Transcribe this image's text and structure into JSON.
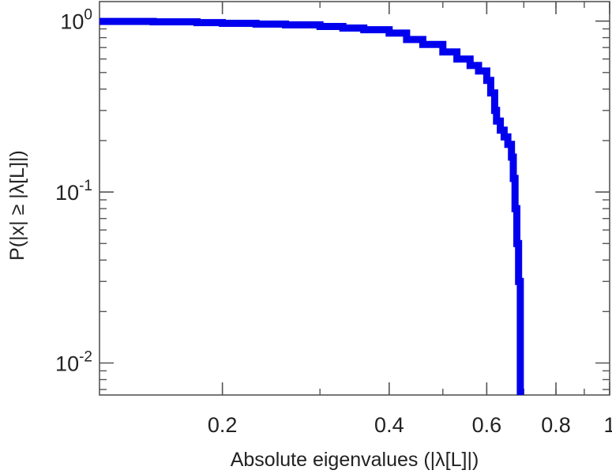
{
  "chart_data": {
    "type": "line",
    "xscale": "log",
    "yscale": "log",
    "xlim": [
      0.12,
      1.0
    ],
    "ylim": [
      0.0065,
      1.3
    ],
    "xlabel": "Absolute eigenvalues (|λ[L]|)",
    "ylabel": "P(|x| ≥ |λ[L]|)",
    "x_ticks": [
      {
        "value": 0.2,
        "label": "0.2"
      },
      {
        "value": 0.4,
        "label": "0.4"
      },
      {
        "value": 0.6,
        "label": "0.6"
      },
      {
        "value": 0.8,
        "label": "0.8"
      },
      {
        "value": 1.0,
        "label": "1"
      }
    ],
    "y_ticks": [
      {
        "value": 1.0,
        "base": "10",
        "exp": "0"
      },
      {
        "value": 0.1,
        "base": "10",
        "exp": "-1"
      },
      {
        "value": 0.01,
        "base": "10",
        "exp": "-2"
      }
    ],
    "grid": false,
    "legend": "none",
    "series": [
      {
        "color": "#0000ee",
        "x": [
          0.12,
          0.15,
          0.18,
          0.2,
          0.23,
          0.26,
          0.3,
          0.33,
          0.36,
          0.4,
          0.43,
          0.46,
          0.5,
          0.53,
          0.56,
          0.58,
          0.6,
          0.61,
          0.62,
          0.625,
          0.635,
          0.645,
          0.655,
          0.665,
          0.67,
          0.675,
          0.68,
          0.685,
          0.69,
          0.69
        ],
        "y": [
          0.995,
          0.99,
          0.98,
          0.97,
          0.96,
          0.95,
          0.93,
          0.91,
          0.89,
          0.85,
          0.78,
          0.73,
          0.66,
          0.6,
          0.55,
          0.51,
          0.45,
          0.38,
          0.3,
          0.26,
          0.23,
          0.21,
          0.19,
          0.16,
          0.12,
          0.08,
          0.05,
          0.03,
          0.012,
          0.0065
        ]
      }
    ]
  }
}
